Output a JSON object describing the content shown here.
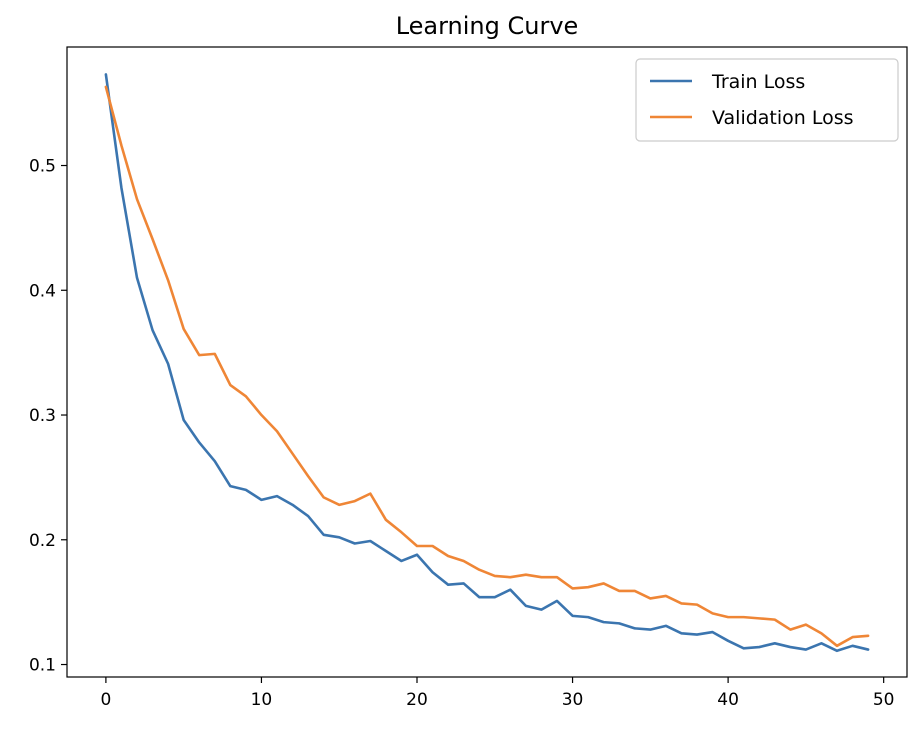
{
  "chart_data": {
    "type": "line",
    "title": "Learning Curve",
    "xlabel": "",
    "ylabel": "",
    "xlim": [
      -2.5,
      51.5
    ],
    "ylim": [
      0.09,
      0.595
    ],
    "x_ticks": [
      0,
      10,
      20,
      30,
      40,
      50
    ],
    "y_ticks": [
      0.1,
      0.2,
      0.3,
      0.4,
      0.5
    ],
    "grid": false,
    "legend_position": "top-right",
    "x": [
      0,
      1,
      2,
      3,
      4,
      5,
      6,
      7,
      8,
      9,
      10,
      11,
      12,
      13,
      14,
      15,
      16,
      17,
      18,
      19,
      20,
      21,
      22,
      23,
      24,
      25,
      26,
      27,
      28,
      29,
      30,
      31,
      32,
      33,
      34,
      35,
      36,
      37,
      38,
      39,
      40,
      41,
      42,
      43,
      44,
      45,
      46,
      47,
      48,
      49
    ],
    "series": [
      {
        "name": "Train Loss",
        "color": "#3b75af",
        "values": [
          0.573,
          0.482,
          0.41,
          0.368,
          0.341,
          0.296,
          0.278,
          0.263,
          0.243,
          0.24,
          0.232,
          0.235,
          0.228,
          0.219,
          0.204,
          0.202,
          0.197,
          0.199,
          0.191,
          0.183,
          0.188,
          0.174,
          0.164,
          0.165,
          0.154,
          0.154,
          0.16,
          0.147,
          0.144,
          0.151,
          0.139,
          0.138,
          0.134,
          0.133,
          0.129,
          0.128,
          0.131,
          0.125,
          0.124,
          0.126,
          0.119,
          0.113,
          0.114,
          0.117,
          0.114,
          0.112,
          0.117,
          0.111,
          0.115,
          0.112
        ]
      },
      {
        "name": "Validation Loss",
        "color": "#ef8636",
        "values": [
          0.563,
          0.516,
          0.473,
          0.441,
          0.408,
          0.369,
          0.348,
          0.349,
          0.324,
          0.315,
          0.3,
          0.287,
          0.269,
          0.251,
          0.234,
          0.228,
          0.231,
          0.237,
          0.216,
          0.206,
          0.195,
          0.195,
          0.187,
          0.183,
          0.176,
          0.171,
          0.17,
          0.172,
          0.17,
          0.17,
          0.161,
          0.162,
          0.165,
          0.159,
          0.159,
          0.153,
          0.155,
          0.149,
          0.148,
          0.141,
          0.138,
          0.138,
          0.137,
          0.136,
          0.128,
          0.132,
          0.125,
          0.115,
          0.122,
          0.123
        ]
      }
    ]
  }
}
